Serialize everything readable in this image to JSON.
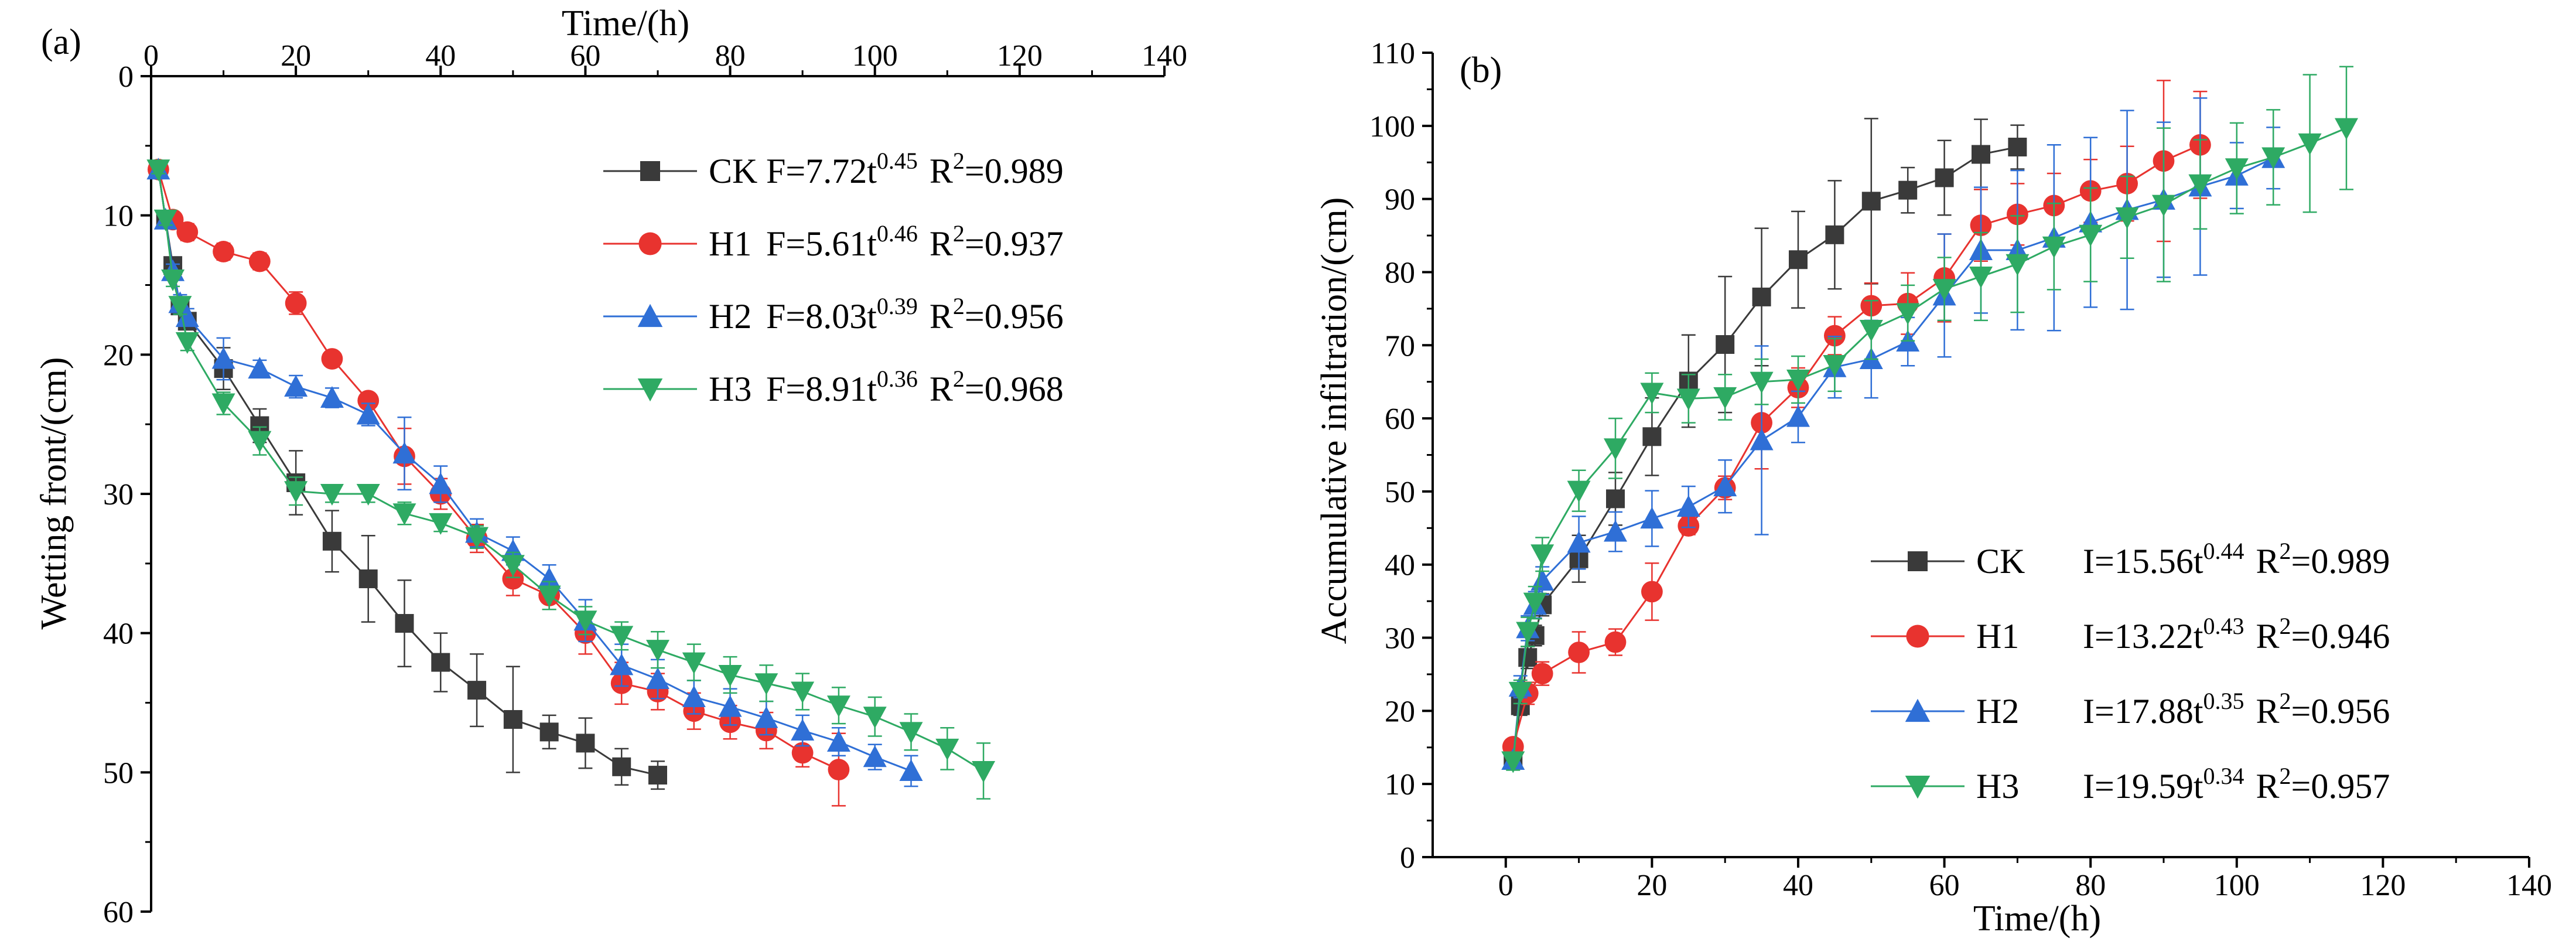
{
  "chart_data": [
    {
      "type": "line",
      "panel_label": "(a)",
      "title": "",
      "xlabel": "Time/(h)",
      "ylabel": "Wetting front/(cm)",
      "xlim": [
        0,
        140
      ],
      "ylim": [
        0,
        60
      ],
      "y_inverted": true,
      "x_axis_position": "top",
      "x_ticks": [
        0,
        20,
        40,
        60,
        80,
        100,
        120,
        140
      ],
      "y_ticks": [
        0,
        10,
        20,
        30,
        40,
        50,
        60
      ],
      "legend_position": "top-right",
      "series": [
        {
          "name": "CK",
          "marker": "square",
          "color": "#3a3a3a",
          "legend_eq": "F=7.72t",
          "legend_exp": "0.45",
          "legend_r2": "R",
          "legend_r2_exp": "2",
          "legend_r2_val": "=0.989",
          "x": [
            1,
            2,
            3,
            4,
            5,
            10,
            15,
            20,
            25,
            30,
            35,
            40,
            45,
            50,
            55,
            60,
            65,
            70
          ],
          "y": [
            6.7,
            10.3,
            13.6,
            16.5,
            17.6,
            21.0,
            25.1,
            29.2,
            33.4,
            36.1,
            39.3,
            42.1,
            44.1,
            46.2,
            47.1,
            47.9,
            49.6,
            50.2
          ],
          "err": [
            0.3,
            0.4,
            0.5,
            0.6,
            0.6,
            1.5,
            1.2,
            2.3,
            2.2,
            3.1,
            3.1,
            2.1,
            2.6,
            3.8,
            1.2,
            1.8,
            1.3,
            1.0
          ]
        },
        {
          "name": "H1",
          "marker": "circle",
          "color": "#e8332f",
          "legend_eq": "F=5.61t",
          "legend_exp": "0.46",
          "legend_r2": "R",
          "legend_r2_exp": "2",
          "legend_r2_val": "=0.937",
          "x": [
            1,
            3,
            5,
            10,
            15,
            20,
            25,
            30,
            35,
            40,
            45,
            50,
            55,
            60,
            65,
            70,
            75,
            80,
            85,
            90,
            95
          ],
          "y": [
            6.7,
            10.3,
            11.2,
            12.6,
            13.3,
            16.3,
            20.3,
            23.3,
            27.3,
            30.0,
            33.2,
            36.1,
            37.3,
            40.0,
            43.6,
            44.2,
            45.6,
            46.4,
            47.0,
            48.6,
            49.8
          ],
          "err": [
            0.3,
            0.5,
            0.6,
            0.6,
            0.6,
            0.8,
            0.5,
            0.5,
            2.0,
            1.1,
            1.0,
            1.2,
            1.0,
            1.5,
            1.5,
            1.3,
            1.3,
            1.2,
            1.3,
            1.0,
            2.6
          ]
        },
        {
          "name": "H2",
          "marker": "triangle-up",
          "color": "#2f6fd6",
          "legend_eq": "F=8.03t",
          "legend_exp": "0.39",
          "legend_r2": "R",
          "legend_r2_exp": "2",
          "legend_r2_val": "=0.956",
          "x": [
            1,
            2,
            3,
            4,
            5,
            10,
            15,
            20,
            25,
            30,
            35,
            40,
            45,
            50,
            55,
            60,
            65,
            70,
            75,
            80,
            85,
            90,
            95,
            100,
            105
          ],
          "y": [
            6.7,
            10.3,
            14.0,
            16.3,
            17.3,
            20.3,
            21.0,
            22.3,
            23.1,
            24.3,
            27.1,
            29.3,
            32.8,
            34.1,
            36.1,
            39.1,
            42.3,
            43.3,
            44.6,
            45.3,
            46.1,
            47.0,
            47.8,
            48.9,
            49.9
          ],
          "err": [
            0.3,
            0.4,
            0.5,
            0.6,
            0.6,
            1.5,
            0.6,
            0.8,
            0.7,
            0.8,
            2.6,
            1.3,
            1.0,
            1.0,
            1.0,
            1.5,
            1.5,
            1.4,
            1.2,
            1.3,
            1.2,
            1.1,
            1.0,
            0.9,
            1.1
          ]
        },
        {
          "name": "H3",
          "marker": "triangle-down",
          "color": "#2eaa63",
          "legend_eq": "F=8.91t",
          "legend_exp": "0.36",
          "legend_r2": "R",
          "legend_r2_exp": "2",
          "legend_r2_val": "=0.968",
          "x": [
            1,
            2,
            3,
            4,
            5,
            10,
            15,
            20,
            25,
            30,
            35,
            40,
            45,
            50,
            55,
            60,
            65,
            70,
            75,
            80,
            85,
            90,
            95,
            100,
            105,
            110,
            115
          ],
          "y": [
            6.7,
            10.3,
            14.6,
            16.5,
            19.1,
            23.5,
            26.2,
            29.8,
            30.0,
            30.0,
            31.4,
            32.1,
            33.1,
            35.1,
            37.3,
            39.1,
            40.2,
            41.2,
            42.1,
            43.0,
            43.6,
            44.2,
            45.2,
            46.0,
            47.1,
            48.3,
            49.9
          ],
          "err": [
            0.3,
            0.4,
            0.5,
            0.6,
            0.6,
            0.8,
            1.0,
            1.0,
            0.6,
            0.6,
            0.8,
            0.6,
            0.8,
            0.9,
            1.0,
            1.0,
            1.0,
            1.3,
            1.3,
            1.3,
            1.3,
            1.3,
            1.3,
            1.4,
            1.3,
            1.5,
            2.0
          ]
        }
      ]
    },
    {
      "type": "line",
      "panel_label": "(b)",
      "title": "",
      "xlabel": "Time/(h)",
      "ylabel": "Accumulative infiltration/(cm)",
      "xlim": [
        -10,
        140
      ],
      "ylim": [
        0,
        110
      ],
      "x_ticks": [
        0,
        20,
        40,
        60,
        80,
        100,
        120,
        140
      ],
      "y_ticks": [
        0,
        10,
        20,
        30,
        40,
        50,
        60,
        70,
        80,
        90,
        100,
        110
      ],
      "legend_position": "bottom-right",
      "series": [
        {
          "name": "CK",
          "marker": "square",
          "color": "#3a3a3a",
          "legend_eq": "I=15.56t",
          "legend_exp": "0.44",
          "legend_r2": "R",
          "legend_r2_exp": "2",
          "legend_r2_val": "=0.989",
          "x": [
            1,
            2,
            3,
            4,
            5,
            10,
            15,
            20,
            25,
            30,
            35,
            40,
            45,
            50,
            55,
            60,
            65,
            70
          ],
          "y": [
            13.3,
            20.7,
            27.3,
            30.3,
            34.5,
            40.8,
            49.0,
            57.5,
            65.1,
            70.1,
            76.6,
            81.7,
            85.1,
            89.7,
            91.2,
            92.9,
            96.1,
            97.1
          ],
          "err": [
            1.0,
            1.3,
            1.5,
            1.4,
            1.5,
            3.2,
            3.6,
            5.3,
            6.3,
            9.3,
            9.4,
            6.6,
            7.4,
            11.3,
            3.1,
            5.1,
            4.8,
            3.0
          ]
        },
        {
          "name": "H1",
          "marker": "circle",
          "color": "#e8332f",
          "legend_eq": "I=13.22t",
          "legend_exp": "0.43",
          "legend_r2": "R",
          "legend_r2_exp": "2",
          "legend_r2_val": "=0.946",
          "x": [
            1,
            3,
            5,
            10,
            15,
            20,
            25,
            30,
            35,
            40,
            45,
            50,
            55,
            60,
            65,
            70,
            75,
            80,
            85,
            90,
            95
          ],
          "y": [
            15.1,
            22.4,
            25.1,
            28.0,
            29.4,
            36.3,
            45.3,
            50.5,
            59.4,
            64.2,
            71.3,
            75.4,
            75.7,
            79.2,
            86.4,
            87.9,
            89.1,
            91.1,
            92.1,
            95.2,
            97.4
          ],
          "err": [
            1.0,
            1.5,
            1.6,
            2.8,
            1.8,
            3.9,
            1.2,
            1.6,
            6.3,
            2.7,
            2.6,
            3.1,
            4.2,
            6.0,
            4.9,
            4.2,
            4.4,
            4.3,
            5.1,
            11.0,
            7.3
          ]
        },
        {
          "name": "H2",
          "marker": "triangle-up",
          "color": "#2f6fd6",
          "legend_eq": "I=17.88t",
          "legend_exp": "0.35",
          "legend_r2": "R",
          "legend_r2_exp": "2",
          "legend_r2_val": "=0.956",
          "x": [
            1,
            2,
            3,
            4,
            5,
            10,
            15,
            20,
            25,
            30,
            35,
            40,
            45,
            50,
            55,
            60,
            65,
            70,
            75,
            80,
            85,
            90,
            95,
            100,
            105
          ],
          "y": [
            13.3,
            23.3,
            31.3,
            34.5,
            37.8,
            43.0,
            44.5,
            46.3,
            47.9,
            50.7,
            57.0,
            60.2,
            67.0,
            68.1,
            70.5,
            76.8,
            83.0,
            83.0,
            84.7,
            86.8,
            88.5,
            89.9,
            91.7,
            93.2,
            95.6
          ],
          "err": [
            1.0,
            1.5,
            1.7,
            1.8,
            1.9,
            3.6,
            2.7,
            3.8,
            2.8,
            3.6,
            12.9,
            3.5,
            4.2,
            5.3,
            3.3,
            8.4,
            8.6,
            10.9,
            12.7,
            11.6,
            13.6,
            10.6,
            12.1,
            4.5,
            4.2
          ]
        },
        {
          "name": "H3",
          "marker": "triangle-down",
          "color": "#2eaa63",
          "legend_eq": "I=19.59t",
          "legend_exp": "0.34",
          "legend_r2": "R",
          "legend_r2_exp": "2",
          "legend_r2_val": "=0.957",
          "x": [
            1,
            2,
            3,
            4,
            5,
            10,
            15,
            20,
            25,
            30,
            35,
            40,
            45,
            50,
            55,
            60,
            65,
            70,
            75,
            80,
            85,
            90,
            95,
            100,
            105,
            110,
            115
          ],
          "y": [
            13.1,
            22.6,
            30.8,
            34.8,
            41.4,
            50.1,
            55.9,
            63.5,
            62.7,
            62.9,
            65.0,
            65.3,
            67.3,
            72.1,
            74.4,
            77.7,
            79.4,
            81.1,
            83.5,
            85.1,
            87.5,
            89.2,
            92.0,
            94.2,
            95.7,
            97.6,
            99.7
          ],
          "err": [
            1.2,
            1.6,
            2.0,
            2.2,
            2.3,
            2.8,
            4.1,
            2.7,
            3.3,
            3.1,
            3.1,
            3.2,
            3.6,
            4.0,
            3.8,
            4.3,
            6.0,
            6.6,
            5.9,
            6.4,
            5.6,
            10.5,
            6.1,
            6.2,
            6.5,
            9.4,
            8.4
          ]
        }
      ]
    }
  ]
}
